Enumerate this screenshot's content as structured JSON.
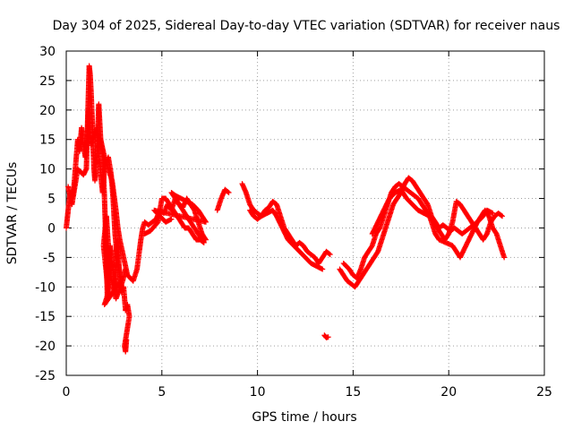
{
  "chart_data": {
    "type": "scatter",
    "title": "Day 304 of 2025, Sidereal Day-to-day VTEC variation (SDTVAR) for receiver naus",
    "xlabel": "GPS time / hours",
    "ylabel": "SDTVAR / TECUs",
    "xlim": [
      0,
      25
    ],
    "ylim": [
      -25,
      30
    ],
    "xticks": [
      "0",
      "5",
      "10",
      "15",
      "20",
      "25"
    ],
    "yticks": [
      "-25",
      "-20",
      "-15",
      "-10",
      "-5",
      "0",
      "5",
      "10",
      "15",
      "20",
      "25",
      "30"
    ],
    "grid": true,
    "marker": "plus",
    "series": [
      {
        "name": "SDTVAR",
        "color": "#ff0000",
        "segments": [
          [
            [
              0.0,
              0.0
            ],
            [
              0.1,
              3
            ],
            [
              0.2,
              6
            ],
            [
              0.3,
              5
            ],
            [
              0.4,
              7
            ],
            [
              0.5,
              11
            ],
            [
              0.6,
              15
            ],
            [
              0.7,
              13
            ],
            [
              0.8,
              17
            ],
            [
              0.9,
              14
            ],
            [
              1.0,
              12
            ],
            [
              1.1,
              16
            ],
            [
              1.2,
              27.5
            ],
            [
              1.25,
              26
            ],
            [
              1.3,
              23
            ],
            [
              1.35,
              19
            ],
            [
              1.4,
              14
            ],
            [
              1.45,
              10
            ],
            [
              1.5,
              8
            ],
            [
              1.6,
              12
            ],
            [
              1.7,
              21
            ],
            [
              1.75,
              18
            ],
            [
              1.8,
              15
            ],
            [
              1.9,
              13
            ],
            [
              2.0,
              5
            ],
            [
              2.05,
              0
            ],
            [
              2.1,
              -5
            ],
            [
              2.15,
              -12
            ],
            [
              2.2,
              -10
            ],
            [
              2.3,
              -3
            ],
            [
              2.4,
              -6
            ],
            [
              2.5,
              -8
            ],
            [
              2.55,
              -11
            ],
            [
              2.6,
              -4
            ],
            [
              2.7,
              -2
            ],
            [
              2.75,
              -6
            ],
            [
              2.8,
              -8
            ],
            [
              2.9,
              -11
            ],
            [
              3.0,
              -10
            ],
            [
              3.1,
              -14
            ],
            [
              3.2,
              -13
            ],
            [
              3.3,
              -15
            ],
            [
              3.05,
              -20
            ],
            [
              3.1,
              -21
            ],
            [
              3.15,
              -19
            ]
          ],
          [
            [
              0.1,
              7
            ],
            [
              0.3,
              4
            ],
            [
              0.6,
              10
            ],
            [
              0.9,
              9
            ],
            [
              1.05,
              10
            ],
            [
              1.15,
              20
            ],
            [
              1.3,
              14
            ],
            [
              1.6,
              17
            ],
            [
              1.7,
              13
            ],
            [
              1.8,
              9
            ],
            [
              1.9,
              6
            ],
            [
              2.0,
              10
            ],
            [
              2.2,
              12
            ],
            [
              2.35,
              9
            ],
            [
              2.45,
              5
            ],
            [
              2.55,
              -1
            ],
            [
              2.7,
              -6
            ],
            [
              2.85,
              -9
            ],
            [
              2.0,
              -13
            ],
            [
              2.2,
              -11
            ],
            [
              1.95,
              -3
            ],
            [
              2.1,
              2
            ],
            [
              2.3,
              -8
            ],
            [
              2.6,
              -12
            ],
            [
              2.95,
              -9
            ],
            [
              3.1,
              -7
            ]
          ],
          [
            [
              1.8,
              15
            ],
            [
              2.0,
              12
            ],
            [
              2.2,
              10
            ],
            [
              2.4,
              8
            ],
            [
              2.6,
              3
            ],
            [
              2.7,
              0
            ],
            [
              2.8,
              -2
            ],
            [
              3.0,
              -5
            ],
            [
              3.2,
              -8
            ],
            [
              3.5,
              -9
            ],
            [
              3.7,
              -7
            ],
            [
              3.9,
              -2
            ],
            [
              4.0,
              0
            ],
            [
              4.1,
              1
            ],
            [
              4.3,
              0.5
            ],
            [
              4.5,
              1
            ],
            [
              4.7,
              1.5
            ],
            [
              4.9,
              3
            ],
            [
              5.1,
              2.5
            ],
            [
              5.3,
              4
            ],
            [
              5.5,
              3
            ],
            [
              5.7,
              5
            ],
            [
              5.9,
              4
            ],
            [
              6.1,
              3.5
            ],
            [
              6.3,
              5
            ],
            [
              6.5,
              4
            ],
            [
              6.7,
              3
            ],
            [
              6.9,
              1
            ],
            [
              7.1,
              -1
            ],
            [
              7.3,
              -2
            ]
          ],
          [
            [
              4.1,
              -1
            ],
            [
              4.4,
              -0.5
            ],
            [
              4.8,
              1
            ],
            [
              5.0,
              5
            ],
            [
              5.2,
              5
            ],
            [
              5.4,
              4
            ],
            [
              5.8,
              2
            ],
            [
              6.0,
              1
            ],
            [
              6.2,
              0
            ],
            [
              6.4,
              0
            ],
            [
              6.6,
              -1
            ],
            [
              6.8,
              -2
            ],
            [
              7.0,
              -2
            ],
            [
              7.2,
              -2.5
            ],
            [
              5.5,
              6
            ],
            [
              5.7,
              5.5
            ],
            [
              6.0,
              5
            ],
            [
              6.3,
              4.5
            ],
            [
              6.6,
              4
            ],
            [
              6.9,
              3
            ],
            [
              7.1,
              2
            ],
            [
              7.3,
              1
            ],
            [
              4.6,
              3
            ],
            [
              4.9,
              2
            ],
            [
              5.2,
              1
            ],
            [
              5.5,
              1.5
            ]
          ],
          [
            [
              7.9,
              3
            ],
            [
              8.1,
              5
            ],
            [
              8.3,
              6.5
            ],
            [
              8.5,
              6
            ]
          ],
          [
            [
              9.2,
              7.5
            ],
            [
              9.4,
              6
            ],
            [
              9.6,
              4
            ],
            [
              9.8,
              3
            ],
            [
              10.0,
              2.5
            ],
            [
              10.2,
              2
            ],
            [
              10.4,
              3
            ],
            [
              10.6,
              3.5
            ],
            [
              10.8,
              4.5
            ],
            [
              11.0,
              4
            ],
            [
              11.2,
              2
            ],
            [
              11.4,
              0
            ],
            [
              11.6,
              -1
            ],
            [
              11.8,
              -2
            ],
            [
              12.0,
              -3
            ],
            [
              12.2,
              -2.5
            ],
            [
              12.4,
              -3
            ],
            [
              12.6,
              -4
            ],
            [
              12.8,
              -4.5
            ],
            [
              13.0,
              -5
            ],
            [
              13.2,
              -6
            ],
            [
              13.4,
              -5
            ],
            [
              13.6,
              -4
            ],
            [
              13.8,
              -4.5
            ]
          ],
          [
            [
              9.6,
              3
            ],
            [
              9.8,
              2
            ],
            [
              10.0,
              1.5
            ],
            [
              10.2,
              2
            ],
            [
              10.5,
              2.5
            ],
            [
              10.8,
              3
            ],
            [
              11.0,
              2
            ],
            [
              11.3,
              0
            ],
            [
              11.6,
              -2
            ],
            [
              11.9,
              -3
            ],
            [
              12.2,
              -4
            ],
            [
              12.5,
              -5
            ],
            [
              12.8,
              -6
            ],
            [
              13.1,
              -6.5
            ],
            [
              13.4,
              -7
            ]
          ],
          [
            [
              13.5,
              -18.2
            ],
            [
              13.6,
              -18.6
            ],
            [
              13.7,
              -18.5
            ]
          ],
          [
            [
              14.3,
              -7
            ],
            [
              14.5,
              -8
            ],
            [
              14.7,
              -9
            ],
            [
              14.9,
              -9.5
            ],
            [
              15.1,
              -10
            ],
            [
              15.3,
              -9
            ],
            [
              15.5,
              -8
            ],
            [
              15.7,
              -7
            ],
            [
              15.9,
              -6
            ],
            [
              16.1,
              -5
            ],
            [
              16.3,
              -4
            ],
            [
              16.5,
              -2
            ],
            [
              16.7,
              0
            ],
            [
              16.9,
              2
            ],
            [
              17.1,
              4
            ],
            [
              17.3,
              5
            ],
            [
              17.5,
              6
            ],
            [
              17.7,
              7.5
            ],
            [
              17.9,
              8.5
            ],
            [
              18.1,
              8
            ],
            [
              18.3,
              7
            ],
            [
              18.5,
              6
            ],
            [
              18.7,
              5
            ],
            [
              18.9,
              4
            ],
            [
              19.1,
              2
            ],
            [
              19.3,
              1
            ],
            [
              19.5,
              0
            ],
            [
              19.7,
              0.5
            ],
            [
              19.9,
              0
            ],
            [
              20.1,
              -0.5
            ],
            [
              20.3,
              0
            ],
            [
              20.5,
              -0.5
            ],
            [
              20.7,
              -1
            ],
            [
              20.9,
              -0.5
            ],
            [
              21.1,
              0
            ],
            [
              21.3,
              0.5
            ],
            [
              21.5,
              1
            ],
            [
              21.7,
              2
            ],
            [
              21.9,
              3
            ],
            [
              22.1,
              2
            ],
            [
              22.3,
              0
            ],
            [
              22.5,
              -1
            ],
            [
              22.7,
              -3
            ],
            [
              22.9,
              -5
            ]
          ],
          [
            [
              14.5,
              -6
            ],
            [
              14.8,
              -7
            ],
            [
              15.0,
              -8
            ],
            [
              15.2,
              -8.5
            ],
            [
              15.4,
              -7
            ],
            [
              15.6,
              -5
            ],
            [
              15.8,
              -4
            ],
            [
              16.0,
              -3
            ],
            [
              16.2,
              -1
            ],
            [
              16.4,
              0
            ],
            [
              16.6,
              2
            ],
            [
              16.8,
              4
            ],
            [
              17.0,
              6
            ],
            [
              17.2,
              7
            ],
            [
              17.4,
              7.5
            ],
            [
              17.6,
              7
            ],
            [
              17.8,
              6.5
            ],
            [
              18.0,
              6
            ],
            [
              18.2,
              5.5
            ],
            [
              18.4,
              5
            ],
            [
              18.6,
              4
            ],
            [
              18.8,
              3
            ],
            [
              19.0,
              2
            ],
            [
              19.2,
              1
            ],
            [
              19.4,
              0
            ],
            [
              19.6,
              -1
            ],
            [
              19.8,
              -2
            ],
            [
              20.0,
              -1
            ],
            [
              20.2,
              1
            ],
            [
              20.4,
              4.5
            ],
            [
              20.6,
              4
            ],
            [
              20.8,
              3
            ],
            [
              21.0,
              2
            ],
            [
              21.2,
              1
            ],
            [
              21.4,
              0
            ],
            [
              21.6,
              -1
            ],
            [
              21.8,
              -2
            ],
            [
              22.0,
              -1
            ],
            [
              22.2,
              1
            ],
            [
              22.4,
              2
            ],
            [
              22.6,
              2.5
            ],
            [
              22.8,
              2
            ]
          ],
          [
            [
              16.0,
              -1
            ],
            [
              16.3,
              1
            ],
            [
              16.6,
              3
            ],
            [
              16.9,
              5
            ],
            [
              17.2,
              6
            ],
            [
              17.5,
              6.5
            ],
            [
              17.8,
              5
            ],
            [
              18.1,
              4
            ],
            [
              18.4,
              3
            ],
            [
              18.7,
              2.5
            ],
            [
              19.0,
              2
            ],
            [
              19.3,
              -1
            ],
            [
              19.5,
              -2
            ],
            [
              20.2,
              -3
            ],
            [
              20.4,
              -4
            ],
            [
              20.6,
              -5
            ],
            [
              20.9,
              -3
            ],
            [
              21.2,
              -1
            ],
            [
              21.5,
              1
            ],
            [
              21.8,
              2
            ],
            [
              22.0,
              3
            ],
            [
              22.3,
              2.5
            ]
          ]
        ]
      }
    ]
  }
}
